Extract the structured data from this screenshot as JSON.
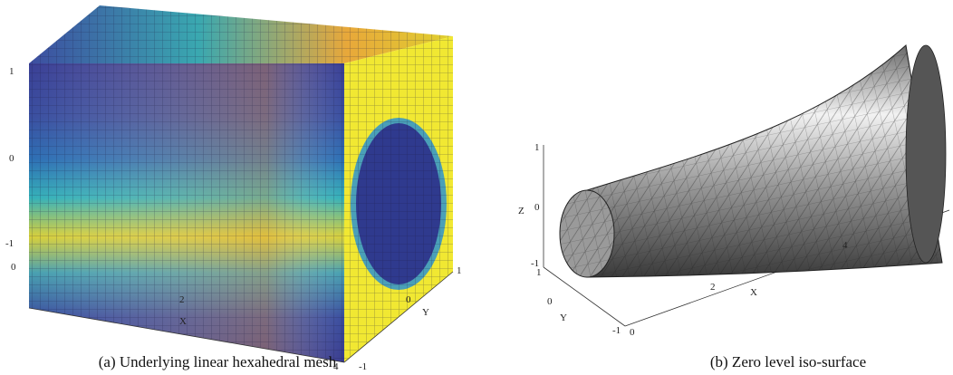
{
  "panels": [
    {
      "caption": "(a) Underlying linear hexahedral mesh",
      "axes": {
        "x_label": "X",
        "y_label": "Y",
        "x_ticks": [
          0,
          2,
          4
        ],
        "y_ticks": [
          -1,
          0,
          1
        ],
        "z_ticks": [
          1,
          0,
          -1
        ]
      }
    },
    {
      "caption": "(b) Zero level iso-surface",
      "axes": {
        "x_label": "X",
        "y_label": "Y",
        "z_label": "Z",
        "x_ticks": [
          0,
          2,
          4
        ],
        "y_ticks": [
          1,
          0,
          -1
        ],
        "z_ticks": [
          1,
          0,
          -1
        ]
      }
    }
  ]
}
